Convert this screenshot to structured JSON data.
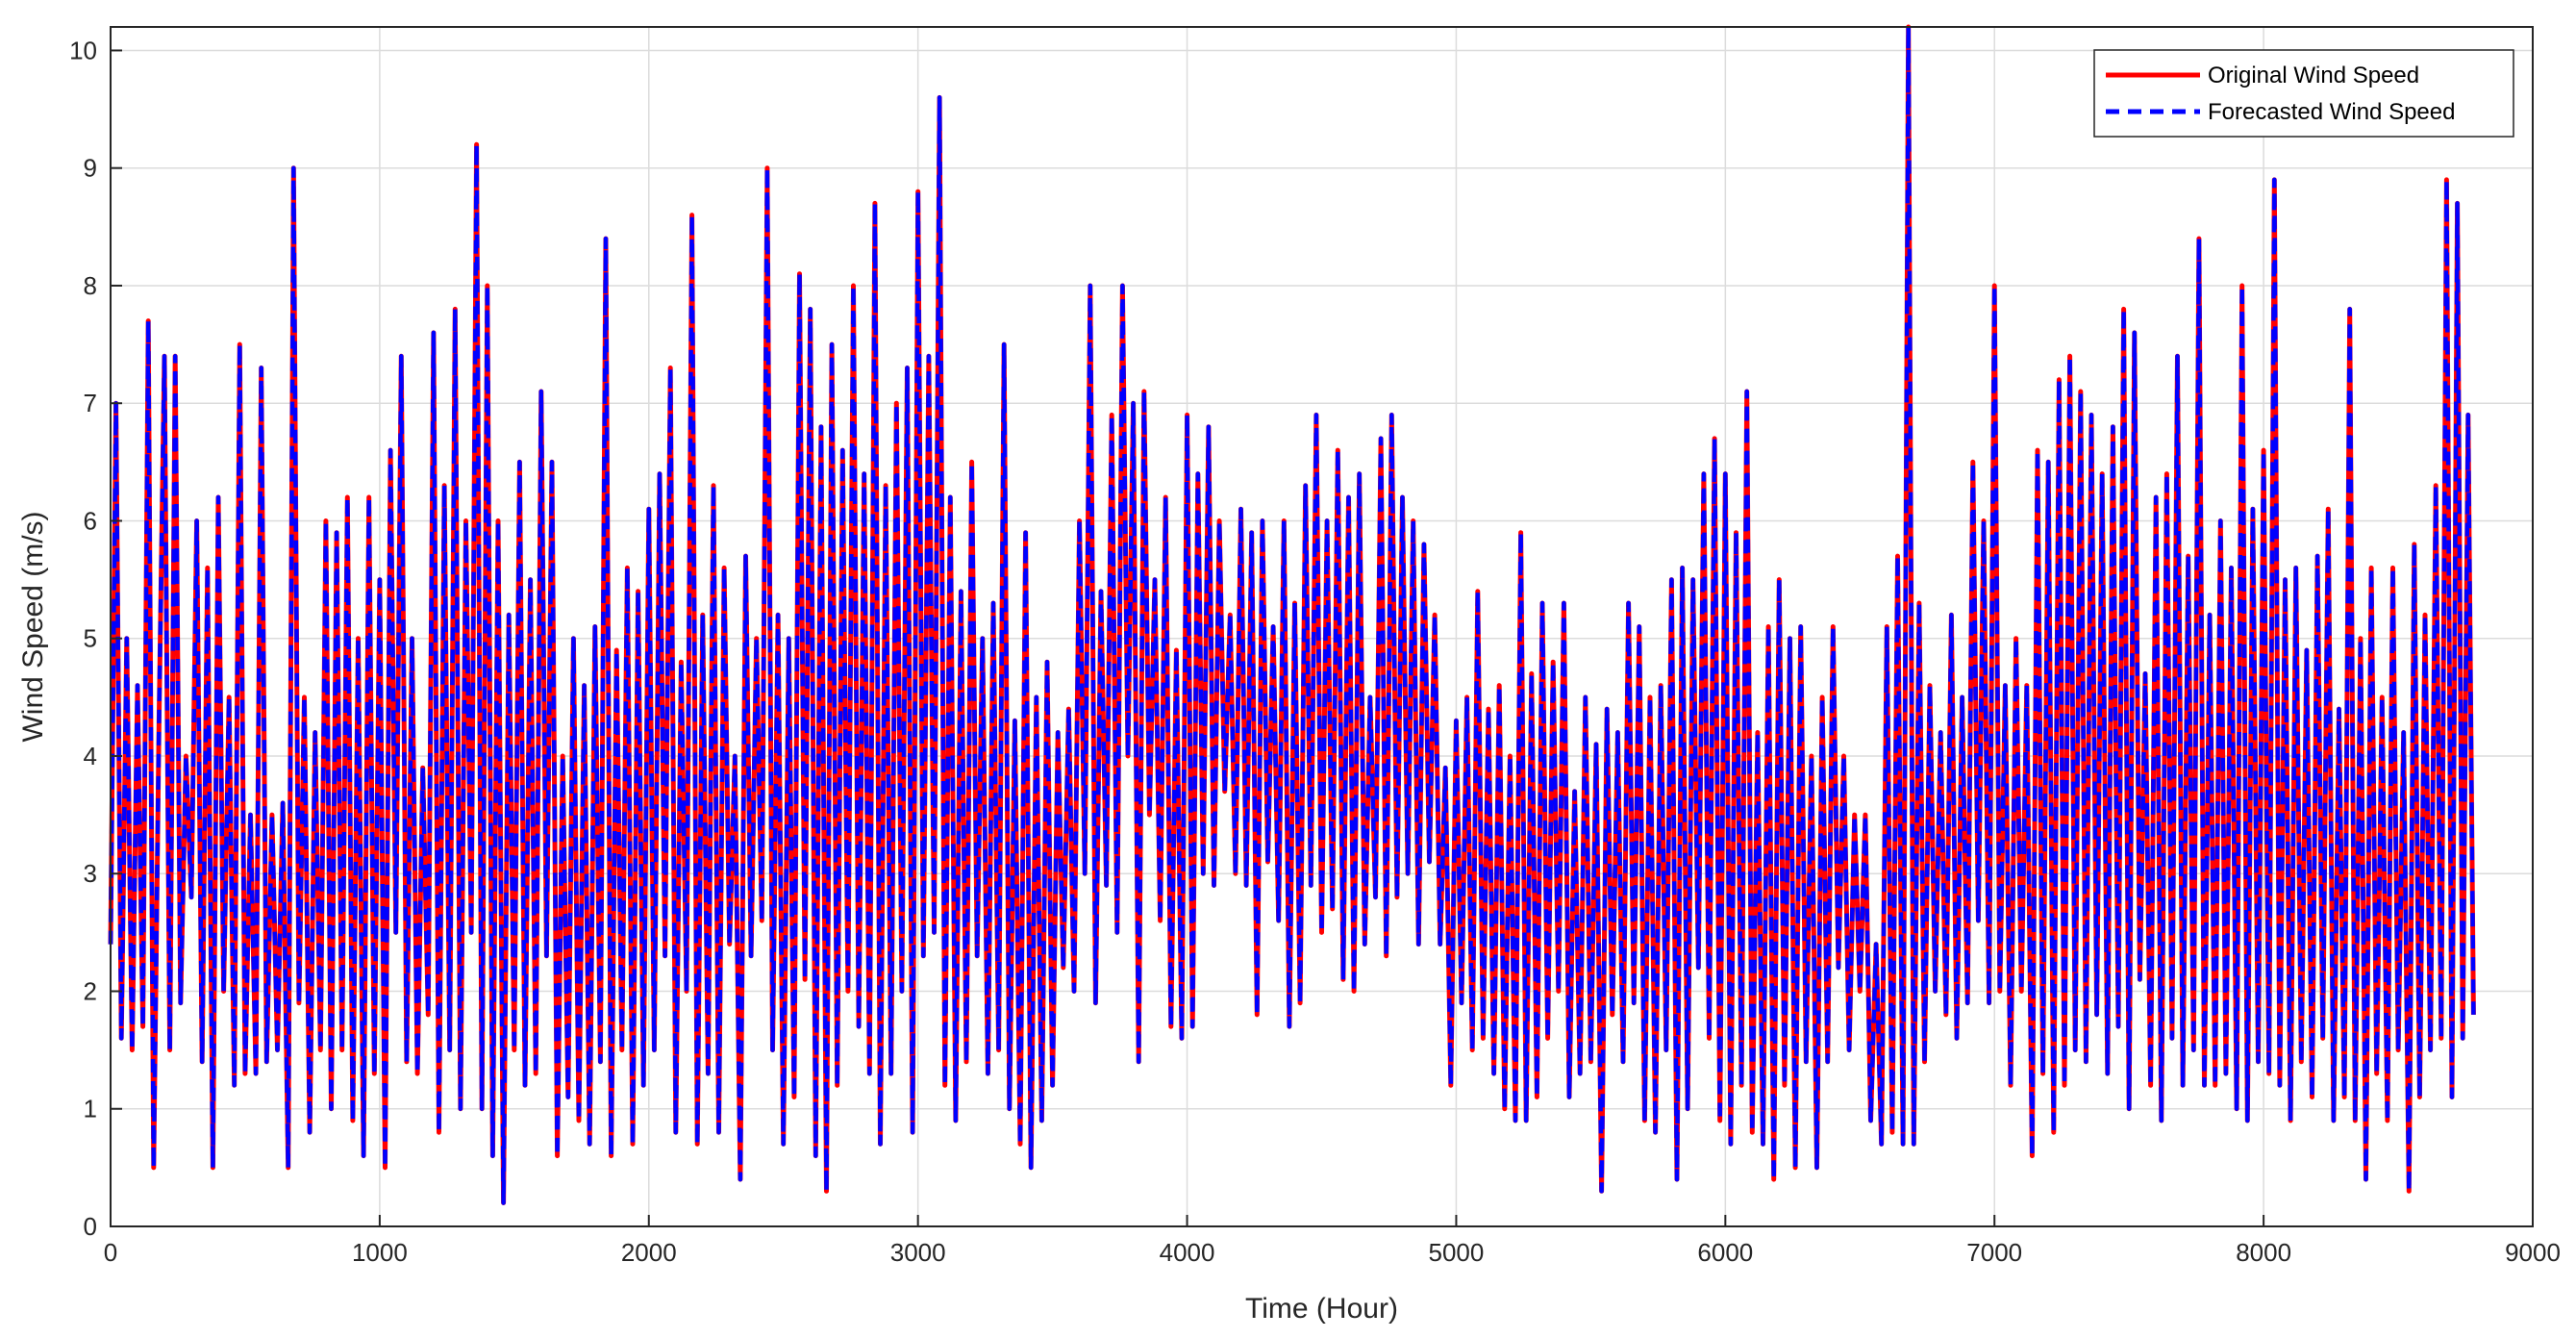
{
  "chart_data": {
    "type": "line",
    "title": "",
    "xlabel": "Time (Hour)",
    "ylabel": "Wind Speed (m/s)",
    "xlim": [
      0,
      9000
    ],
    "ylim": [
      0,
      10.2
    ],
    "x_ticks": [
      0,
      1000,
      2000,
      3000,
      4000,
      5000,
      6000,
      7000,
      8000,
      9000
    ],
    "y_ticks": [
      0,
      1,
      2,
      3,
      4,
      5,
      6,
      7,
      8,
      9,
      10
    ],
    "x_tick_labels": [
      "0",
      "1000",
      "2000",
      "3000",
      "4000",
      "5000",
      "6000",
      "7000",
      "8000",
      "9000"
    ],
    "y_tick_labels": [
      "0",
      "1",
      "2",
      "3",
      "4",
      "5",
      "6",
      "7",
      "8",
      "9",
      "10"
    ],
    "grid": true,
    "legend_position": "top-right",
    "x_step": 20,
    "series": [
      {
        "name": "Original Wind Speed",
        "color": "#ff0000",
        "style": "solid",
        "values": [
          2.4,
          7.0,
          1.6,
          5.0,
          1.5,
          4.6,
          1.7,
          7.7,
          0.5,
          4.3,
          7.4,
          1.5,
          7.4,
          1.9,
          4.0,
          2.8,
          6.0,
          1.4,
          5.6,
          0.5,
          6.2,
          2.0,
          4.5,
          1.2,
          7.5,
          1.3,
          3.5,
          1.3,
          7.3,
          1.4,
          3.5,
          1.5,
          3.6,
          0.5,
          9.0,
          1.9,
          4.5,
          0.8,
          4.2,
          1.5,
          6.0,
          1.0,
          5.9,
          1.5,
          6.2,
          0.9,
          5.0,
          0.6,
          6.2,
          1.3,
          5.5,
          0.5,
          6.6,
          2.5,
          7.4,
          1.4,
          5.0,
          1.3,
          3.9,
          1.8,
          7.6,
          0.8,
          6.3,
          1.5,
          7.8,
          1.0,
          6.0,
          2.5,
          9.2,
          1.0,
          8.0,
          0.6,
          6.0,
          0.2,
          5.2,
          1.5,
          6.5,
          1.2,
          5.5,
          1.3,
          7.1,
          2.3,
          6.5,
          0.6,
          4.0,
          1.1,
          5.0,
          0.9,
          4.6,
          0.7,
          5.1,
          1.4,
          8.4,
          0.6,
          4.9,
          1.5,
          5.6,
          0.7,
          5.4,
          1.2,
          6.1,
          1.5,
          6.4,
          2.3,
          7.3,
          0.8,
          4.8,
          2.0,
          8.6,
          0.7,
          5.2,
          1.3,
          6.3,
          0.8,
          5.6,
          2.4,
          4.0,
          0.4,
          5.7,
          2.3,
          5.0,
          2.6,
          9.0,
          1.5,
          5.2,
          0.7,
          5.0,
          1.1,
          8.1,
          2.1,
          7.8,
          0.6,
          6.8,
          0.3,
          7.5,
          1.2,
          6.6,
          2.0,
          8.0,
          1.7,
          6.4,
          1.3,
          8.7,
          0.7,
          6.3,
          1.3,
          7.0,
          2.0,
          7.3,
          0.8,
          8.8,
          2.3,
          7.4,
          2.5,
          9.6,
          1.2,
          6.2,
          0.9,
          5.4,
          1.4,
          6.5,
          2.3,
          5.0,
          1.3,
          5.3,
          1.5,
          7.5,
          1.0,
          4.3,
          0.7,
          5.9,
          0.5,
          4.5,
          0.9,
          4.8,
          1.2,
          4.2,
          2.2,
          4.4,
          2.0,
          6.0,
          3.0,
          8.0,
          1.9,
          5.4,
          2.9,
          6.9,
          2.5,
          8.0,
          4.0,
          7.0,
          1.4,
          7.1,
          3.5,
          5.5,
          2.6,
          6.2,
          1.7,
          4.9,
          1.6,
          6.9,
          1.7,
          6.4,
          3.0,
          6.8,
          2.9,
          6.0,
          3.7,
          5.2,
          3.0,
          6.1,
          2.9,
          5.9,
          1.8,
          6.0,
          3.1,
          5.1,
          2.6,
          6.0,
          1.7,
          5.3,
          1.9,
          6.3,
          2.9,
          6.9,
          2.5,
          6.0,
          2.7,
          6.6,
          2.1,
          6.2,
          2.0,
          6.4,
          2.4,
          4.5,
          2.8,
          6.7,
          2.3,
          6.9,
          2.8,
          6.2,
          3.0,
          6.0,
          2.4,
          5.8,
          3.1,
          5.2,
          2.4,
          3.9,
          1.2,
          4.3,
          1.9,
          4.5,
          1.5,
          5.4,
          1.6,
          4.4,
          1.3,
          4.6,
          1.0,
          4.0,
          0.9,
          5.9,
          0.9,
          4.7,
          1.1,
          5.3,
          1.6,
          4.8,
          2.0,
          5.3,
          1.1,
          3.7,
          1.3,
          4.5,
          1.4,
          4.1,
          0.3,
          4.4,
          1.8,
          4.2,
          1.4,
          5.3,
          1.9,
          5.1,
          0.9,
          4.5,
          0.8,
          4.6,
          1.5,
          5.5,
          0.4,
          5.6,
          1.0,
          5.5,
          2.2,
          6.4,
          1.6,
          6.7,
          0.9,
          6.4,
          0.7,
          5.9,
          1.2,
          7.1,
          0.8,
          4.2,
          0.7,
          5.1,
          0.4,
          5.5,
          1.2,
          5.0,
          0.5,
          5.1,
          1.4,
          4.0,
          0.5,
          4.5,
          1.4,
          5.1,
          2.2,
          4.0,
          1.5,
          3.5,
          2.0,
          3.5,
          0.9,
          2.4,
          0.7,
          5.1,
          0.8,
          5.7,
          0.7,
          10.2,
          0.7,
          5.3,
          1.4,
          4.6,
          2.0,
          4.2,
          1.8,
          5.2,
          1.6,
          4.5,
          1.9,
          6.5,
          2.6,
          6.0,
          1.9,
          8.0,
          2.0,
          4.6,
          1.2,
          5.0,
          2.0,
          4.6,
          0.6,
          6.6,
          1.3,
          6.5,
          0.8,
          7.2,
          1.2,
          7.4,
          1.5,
          7.1,
          1.4,
          6.9,
          1.8,
          6.4,
          1.3,
          6.8,
          1.7,
          7.8,
          1.0,
          7.6,
          2.1,
          4.7,
          1.2,
          6.2,
          0.9,
          6.4,
          1.6,
          7.4,
          1.2,
          5.7,
          1.5,
          8.4,
          1.2,
          5.2,
          1.2,
          6.0,
          1.3,
          5.6,
          1.0,
          8.0,
          0.9,
          6.1,
          1.4,
          6.6,
          1.3,
          8.9,
          1.2,
          5.5,
          0.9,
          5.6,
          1.4,
          4.9,
          1.1,
          5.7,
          1.6,
          6.1,
          0.9,
          4.4,
          1.1,
          7.8,
          0.9,
          5.0,
          0.4,
          5.6,
          1.3,
          4.5,
          0.9,
          5.6,
          1.5,
          4.2,
          0.3,
          5.8,
          1.1,
          5.2,
          1.5,
          6.3,
          1.6,
          8.9,
          1.1,
          8.7,
          1.6,
          6.9,
          1.8
        ]
      },
      {
        "name": "Forecasted Wind Speed",
        "color": "#0000ff",
        "style": "dashed",
        "values": [
          2.4,
          7.0,
          1.6,
          5.0,
          1.5,
          4.6,
          1.7,
          7.7,
          0.5,
          4.3,
          7.4,
          1.5,
          7.4,
          1.9,
          4.0,
          2.8,
          6.0,
          1.4,
          5.6,
          0.5,
          6.2,
          2.0,
          4.5,
          1.2,
          7.5,
          1.3,
          3.5,
          1.3,
          7.3,
          1.4,
          3.5,
          1.5,
          3.6,
          0.5,
          9.0,
          1.9,
          4.5,
          0.8,
          4.2,
          1.5,
          6.0,
          1.0,
          5.9,
          1.5,
          6.2,
          0.9,
          5.0,
          0.6,
          6.2,
          1.3,
          5.5,
          0.5,
          6.6,
          2.5,
          7.4,
          1.4,
          5.0,
          1.3,
          3.9,
          1.8,
          7.6,
          0.8,
          6.3,
          1.5,
          7.8,
          1.0,
          6.0,
          2.5,
          9.2,
          1.0,
          8.0,
          0.6,
          6.0,
          0.2,
          5.2,
          1.5,
          6.5,
          1.2,
          5.5,
          1.3,
          7.1,
          2.3,
          6.5,
          0.6,
          4.0,
          1.1,
          5.0,
          0.9,
          4.6,
          0.7,
          5.1,
          1.4,
          8.4,
          0.6,
          4.9,
          1.5,
          5.6,
          0.7,
          5.4,
          1.2,
          6.1,
          1.5,
          6.4,
          2.3,
          7.3,
          0.8,
          4.8,
          2.0,
          8.6,
          0.7,
          5.2,
          1.3,
          6.3,
          0.8,
          5.6,
          2.4,
          4.0,
          0.4,
          5.7,
          2.3,
          5.0,
          2.6,
          9.0,
          1.5,
          5.2,
          0.7,
          5.0,
          1.1,
          8.1,
          2.1,
          7.8,
          0.6,
          6.8,
          0.3,
          7.5,
          1.2,
          6.6,
          2.0,
          8.0,
          1.7,
          6.4,
          1.3,
          8.7,
          0.7,
          6.3,
          1.3,
          7.0,
          2.0,
          7.3,
          0.8,
          8.8,
          2.3,
          7.4,
          2.5,
          9.6,
          1.2,
          6.2,
          0.9,
          5.4,
          1.4,
          6.5,
          2.3,
          5.0,
          1.3,
          5.3,
          1.5,
          7.5,
          1.0,
          4.3,
          0.7,
          5.9,
          0.5,
          4.5,
          0.9,
          4.8,
          1.2,
          4.2,
          2.2,
          4.4,
          2.0,
          6.0,
          3.0,
          8.0,
          1.9,
          5.4,
          2.9,
          6.9,
          2.5,
          8.0,
          4.0,
          7.0,
          1.4,
          7.1,
          3.5,
          5.5,
          2.6,
          6.2,
          1.7,
          4.9,
          1.6,
          6.9,
          1.7,
          6.4,
          3.0,
          6.8,
          2.9,
          6.0,
          3.7,
          5.2,
          3.0,
          6.1,
          2.9,
          5.9,
          1.8,
          6.0,
          3.1,
          5.1,
          2.6,
          6.0,
          1.7,
          5.3,
          1.9,
          6.3,
          2.9,
          6.9,
          2.5,
          6.0,
          2.7,
          6.6,
          2.1,
          6.2,
          2.0,
          6.4,
          2.4,
          4.5,
          2.8,
          6.7,
          2.3,
          6.9,
          2.8,
          6.2,
          3.0,
          6.0,
          2.4,
          5.8,
          3.1,
          5.2,
          2.4,
          3.9,
          1.2,
          4.3,
          1.9,
          4.5,
          1.5,
          5.4,
          1.6,
          4.4,
          1.3,
          4.6,
          1.0,
          4.0,
          0.9,
          5.9,
          0.9,
          4.7,
          1.1,
          5.3,
          1.6,
          4.8,
          2.0,
          5.3,
          1.1,
          3.7,
          1.3,
          4.5,
          1.4,
          4.1,
          0.3,
          4.4,
          1.8,
          4.2,
          1.4,
          5.3,
          1.9,
          5.1,
          0.9,
          4.5,
          0.8,
          4.6,
          1.5,
          5.5,
          0.4,
          5.6,
          1.0,
          5.5,
          2.2,
          6.4,
          1.6,
          6.7,
          0.9,
          6.4,
          0.7,
          5.9,
          1.2,
          7.1,
          0.8,
          4.2,
          0.7,
          5.1,
          0.4,
          5.5,
          1.2,
          5.0,
          0.5,
          5.1,
          1.4,
          4.0,
          0.5,
          4.5,
          1.4,
          5.1,
          2.2,
          4.0,
          1.5,
          3.5,
          2.0,
          3.5,
          0.9,
          2.4,
          0.7,
          5.1,
          0.8,
          5.7,
          0.7,
          10.2,
          0.7,
          5.3,
          1.4,
          4.6,
          2.0,
          4.2,
          1.8,
          5.2,
          1.6,
          4.5,
          1.9,
          6.5,
          2.6,
          6.0,
          1.9,
          8.0,
          2.0,
          4.6,
          1.2,
          5.0,
          2.0,
          4.6,
          0.6,
          6.6,
          1.3,
          6.5,
          0.8,
          7.2,
          1.2,
          7.4,
          1.5,
          7.1,
          1.4,
          6.9,
          1.8,
          6.4,
          1.3,
          6.8,
          1.7,
          7.8,
          1.0,
          7.6,
          2.1,
          4.7,
          1.2,
          6.2,
          0.9,
          6.4,
          1.6,
          7.4,
          1.2,
          5.7,
          1.5,
          8.4,
          1.2,
          5.2,
          1.2,
          6.0,
          1.3,
          5.6,
          1.0,
          8.0,
          0.9,
          6.1,
          1.4,
          6.6,
          1.3,
          8.9,
          1.2,
          5.5,
          0.9,
          5.6,
          1.4,
          4.9,
          1.1,
          5.7,
          1.6,
          6.1,
          0.9,
          4.4,
          1.1,
          7.8,
          0.9,
          5.0,
          0.4,
          5.6,
          1.3,
          4.5,
          0.9,
          5.6,
          1.5,
          4.2,
          0.3,
          5.8,
          1.1,
          5.2,
          1.5,
          6.3,
          1.6,
          8.9,
          1.1,
          8.7,
          1.6,
          6.9,
          1.8
        ]
      }
    ]
  }
}
